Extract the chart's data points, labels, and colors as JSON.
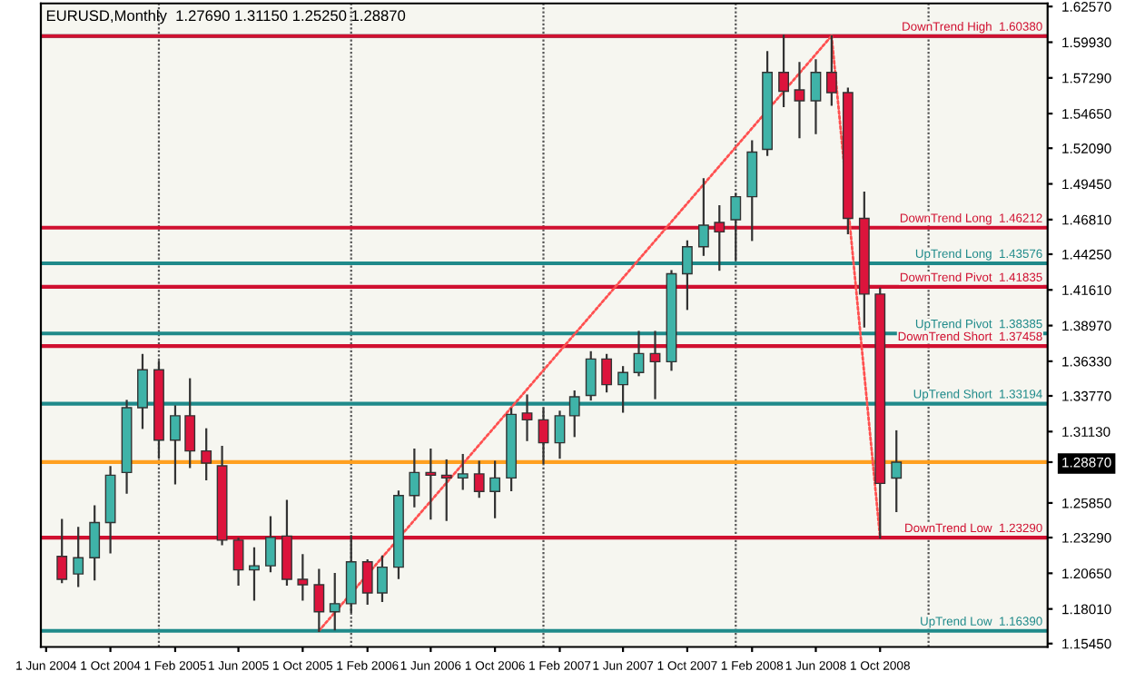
{
  "chart_data": {
    "type": "candlestick",
    "title": "EURUSD,Monthly  1.27690 1.31150 1.25250 1.28870",
    "x": [
      "2004-07",
      "2004-08",
      "2004-09",
      "2004-10",
      "2004-11",
      "2004-12",
      "2005-01",
      "2005-02",
      "2005-03",
      "2005-04",
      "2005-05",
      "2005-06",
      "2005-07",
      "2005-08",
      "2005-09",
      "2005-10",
      "2005-11",
      "2005-12",
      "2006-01",
      "2006-02",
      "2006-03",
      "2006-04",
      "2006-05",
      "2006-06",
      "2006-07",
      "2006-08",
      "2006-09",
      "2006-10",
      "2006-11",
      "2006-12",
      "2007-01",
      "2007-02",
      "2007-03",
      "2007-04",
      "2007-05",
      "2007-06",
      "2007-07",
      "2007-08",
      "2007-09",
      "2007-10",
      "2007-11",
      "2007-12",
      "2008-01",
      "2008-02",
      "2008-03",
      "2008-04",
      "2008-05",
      "2008-06",
      "2008-07",
      "2008-08",
      "2008-09",
      "2008-10",
      "2008-11"
    ],
    "ohlc": [
      [
        1.219,
        1.246,
        1.2,
        1.202
      ],
      [
        1.206,
        1.24,
        1.197,
        1.218
      ],
      [
        1.218,
        1.256,
        1.202,
        1.244
      ],
      [
        1.244,
        1.285,
        1.222,
        1.279
      ],
      [
        1.281,
        1.334,
        1.266,
        1.329
      ],
      [
        1.329,
        1.368,
        1.314,
        1.357
      ],
      [
        1.357,
        1.363,
        1.292,
        1.305
      ],
      [
        1.305,
        1.33,
        1.273,
        1.323
      ],
      [
        1.323,
        1.35,
        1.285,
        1.297
      ],
      [
        1.297,
        1.313,
        1.276,
        1.288
      ],
      [
        1.286,
        1.3,
        1.228,
        1.231
      ],
      [
        1.231,
        1.232,
        1.198,
        1.209
      ],
      [
        1.209,
        1.225,
        1.187,
        1.212
      ],
      [
        1.212,
        1.248,
        1.208,
        1.233
      ],
      [
        1.234,
        1.26,
        1.198,
        1.202
      ],
      [
        1.202,
        1.22,
        1.187,
        1.198
      ],
      [
        1.198,
        1.209,
        1.1639,
        1.178
      ],
      [
        1.178,
        1.206,
        1.165,
        1.184
      ],
      [
        1.184,
        1.234,
        1.178,
        1.215
      ],
      [
        1.215,
        1.216,
        1.184,
        1.192
      ],
      [
        1.192,
        1.219,
        1.186,
        1.211
      ],
      [
        1.211,
        1.267,
        1.203,
        1.264
      ],
      [
        1.264,
        1.298,
        1.256,
        1.281
      ],
      [
        1.281,
        1.298,
        1.247,
        1.279
      ],
      [
        1.279,
        1.29,
        1.246,
        1.277
      ],
      [
        1.277,
        1.294,
        1.269,
        1.28
      ],
      [
        1.28,
        1.289,
        1.263,
        1.267
      ],
      [
        1.267,
        1.289,
        1.248,
        1.277
      ],
      [
        1.277,
        1.328,
        1.268,
        1.324
      ],
      [
        1.325,
        1.338,
        1.305,
        1.32
      ],
      [
        1.32,
        1.328,
        1.288,
        1.303
      ],
      [
        1.303,
        1.326,
        1.292,
        1.323
      ],
      [
        1.323,
        1.341,
        1.308,
        1.337
      ],
      [
        1.338,
        1.37,
        1.335,
        1.365
      ],
      [
        1.365,
        1.368,
        1.341,
        1.346
      ],
      [
        1.346,
        1.359,
        1.326,
        1.355
      ],
      [
        1.355,
        1.385,
        1.353,
        1.369
      ],
      [
        1.369,
        1.385,
        1.336,
        1.363
      ],
      [
        1.363,
        1.43,
        1.357,
        1.428
      ],
      [
        1.428,
        1.452,
        1.402,
        1.448
      ],
      [
        1.448,
        1.498,
        1.442,
        1.464
      ],
      [
        1.466,
        1.478,
        1.431,
        1.459
      ],
      [
        1.468,
        1.487,
        1.438,
        1.485
      ],
      [
        1.485,
        1.526,
        1.453,
        1.518
      ],
      [
        1.52,
        1.592,
        1.516,
        1.577
      ],
      [
        1.577,
        1.604,
        1.552,
        1.563
      ],
      [
        1.564,
        1.584,
        1.529,
        1.556
      ],
      [
        1.556,
        1.586,
        1.532,
        1.577
      ],
      [
        1.577,
        1.6038,
        1.553,
        1.562
      ],
      [
        1.562,
        1.565,
        1.458,
        1.469
      ],
      [
        1.469,
        1.488,
        1.389,
        1.413
      ],
      [
        1.413,
        1.417,
        1.2329,
        1.273
      ],
      [
        1.2769,
        1.3115,
        1.2525,
        1.2887
      ]
    ],
    "colors": [
      "#dc143c",
      "#3fb3a8",
      "#3fb3a8",
      "#3fb3a8",
      "#3fb3a8",
      "#3fb3a8",
      "#dc143c",
      "#3fb3a8",
      "#dc143c",
      "#dc143c",
      "#dc143c",
      "#dc143c",
      "#3fb3a8",
      "#3fb3a8",
      "#dc143c",
      "#dc143c",
      "#dc143c",
      "#3fb3a8",
      "#3fb3a8",
      "#dc143c",
      "#3fb3a8",
      "#3fb3a8",
      "#3fb3a8",
      "#dc143c",
      "#dc143c",
      "#3fb3a8",
      "#dc143c",
      "#3fb3a8",
      "#3fb3a8",
      "#dc143c",
      "#dc143c",
      "#3fb3a8",
      "#3fb3a8",
      "#3fb3a8",
      "#dc143c",
      "#3fb3a8",
      "#3fb3a8",
      "#dc143c",
      "#3fb3a8",
      "#3fb3a8",
      "#3fb3a8",
      "#dc143c",
      "#3fb3a8",
      "#3fb3a8",
      "#3fb3a8",
      "#dc143c",
      "#dc143c",
      "#3fb3a8",
      "#dc143c",
      "#dc143c",
      "#dc143c",
      "#dc143c",
      "#3fb3a8"
    ],
    "series": [
      {
        "type": "line",
        "x": [
          "2005-11",
          "2008-07"
        ],
        "values": [
          1.164,
          1.604
        ],
        "color": "#ff5050",
        "line_style": "dotted"
      },
      {
        "type": "line",
        "x": [
          "2008-07",
          "2008-10"
        ],
        "values": [
          1.604,
          1.233
        ],
        "color": "#ff5050",
        "line_style": "dotted"
      }
    ],
    "ref_lines": [
      {
        "axis": "y",
        "value": 1.6038,
        "label": null,
        "color": "#1f8a8a"
      },
      {
        "axis": "y",
        "value": 1.6038,
        "label": "DownTrend High  1.60380",
        "color": "#d01030"
      },
      {
        "axis": "y",
        "value": 1.46212,
        "label": "DownTrend Long  1.46212",
        "color": "#d01030"
      },
      {
        "axis": "y",
        "value": 1.43576,
        "label": "UpTrend Long  1.43576",
        "color": "#1f8a8a"
      },
      {
        "axis": "y",
        "value": 1.41835,
        "label": "DownTrend Pivot  1.41835",
        "color": "#d01030"
      },
      {
        "axis": "y",
        "value": 1.38385,
        "label": "UpTrend Pivot  1.38385",
        "color": "#1f8a8a"
      },
      {
        "axis": "y",
        "value": 1.37458,
        "label": "DownTrend Short  1.37458",
        "color": "#d01030"
      },
      {
        "axis": "y",
        "value": 1.33194,
        "label": "UpTrend Short  1.33194",
        "color": "#1f8a8a"
      },
      {
        "axis": "y",
        "value": 1.2329,
        "label": "DownTrend Low  1.23290",
        "color": "#d01030"
      },
      {
        "axis": "y",
        "value": 1.1639,
        "label": "UpTrend Low  1.16390",
        "color": "#1f8a8a"
      },
      {
        "axis": "y",
        "value": 1.2887,
        "label": null,
        "color": "#ffa020"
      },
      {
        "axis": "x",
        "value": "2005-01",
        "label": null,
        "color": "#555555",
        "line_style": "dotted"
      },
      {
        "axis": "x",
        "value": "2006-01",
        "label": null,
        "color": "#555555",
        "line_style": "dotted"
      },
      {
        "axis": "x",
        "value": "2007-01",
        "label": null,
        "color": "#555555",
        "line_style": "dotted"
      },
      {
        "axis": "x",
        "value": "2008-01",
        "label": null,
        "color": "#555555",
        "line_style": "dotted"
      },
      {
        "axis": "x",
        "value": "2009-01",
        "label": null,
        "color": "#555555",
        "line_style": "dotted"
      }
    ],
    "xlim": [
      "2004-05-22",
      "2009-08-15"
    ],
    "xticks": [
      {
        "value": "2004-06",
        "label": "1 Jun 2004"
      },
      {
        "value": "2004-10",
        "label": "1 Oct 2004"
      },
      {
        "value": "2005-02",
        "label": "1 Feb 2005"
      },
      {
        "value": "2005-06",
        "label": "1 Jun 2005"
      },
      {
        "value": "2005-10",
        "label": "1 Oct 2005"
      },
      {
        "value": "2006-02",
        "label": "1 Feb 2006"
      },
      {
        "value": "2006-06",
        "label": "1 Jun 2006"
      },
      {
        "value": "2006-10",
        "label": "1 Oct 2006"
      },
      {
        "value": "2007-02",
        "label": "1 Feb 2007"
      },
      {
        "value": "2007-06",
        "label": "1 Jun 2007"
      },
      {
        "value": "2007-10",
        "label": "1 Oct 2007"
      },
      {
        "value": "2008-02",
        "label": "1 Feb 2008"
      },
      {
        "value": "2008-06",
        "label": "1 Jun 2008"
      },
      {
        "value": "2008-10",
        "label": "1 Oct 2008"
      }
    ],
    "ylim": [
      1.152,
      1.628
    ],
    "yticks": [
      {
        "value": 1.6257,
        "label": "1.62570"
      },
      {
        "value": 1.5993,
        "label": "1.59930"
      },
      {
        "value": 1.5729,
        "label": "1.57290"
      },
      {
        "value": 1.5465,
        "label": "1.54650"
      },
      {
        "value": 1.5209,
        "label": "1.52090"
      },
      {
        "value": 1.4945,
        "label": "1.49450"
      },
      {
        "value": 1.4681,
        "label": "1.46810"
      },
      {
        "value": 1.4425,
        "label": "1.44250"
      },
      {
        "value": 1.4161,
        "label": "1.41610"
      },
      {
        "value": 1.3897,
        "label": "1.38970"
      },
      {
        "value": 1.3633,
        "label": "1.36330"
      },
      {
        "value": 1.3377,
        "label": "1.33770"
      },
      {
        "value": 1.3113,
        "label": "1.31130"
      },
      {
        "value": 1.2887,
        "label": "1.28870"
      },
      {
        "value": 1.2585,
        "label": "1.25850"
      },
      {
        "value": 1.2329,
        "label": "1.23290"
      },
      {
        "value": 1.2065,
        "label": "1.20650"
      },
      {
        "value": 1.1801,
        "label": "1.18010"
      },
      {
        "value": 1.1545,
        "label": "1.15450"
      }
    ],
    "grid": false,
    "legend": false
  }
}
